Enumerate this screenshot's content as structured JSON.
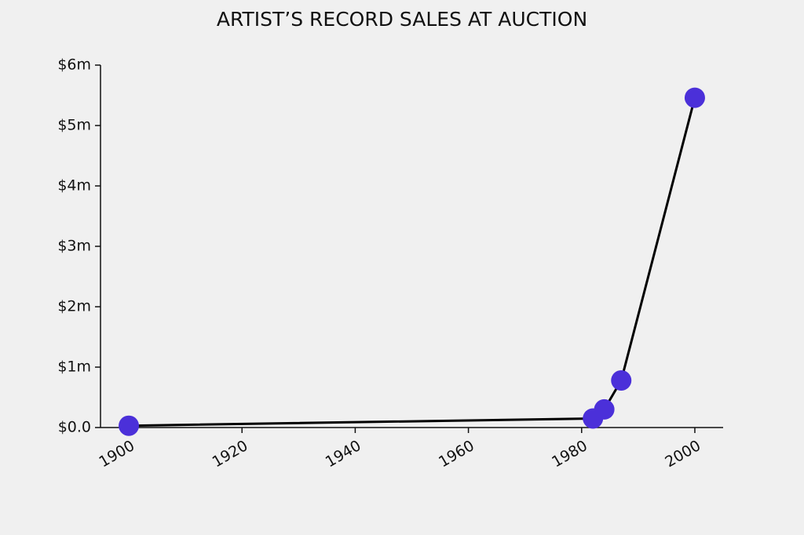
{
  "chart_data": {
    "type": "line",
    "title": "ARTIST’S RECORD SALES AT AUCTION",
    "x": [
      1900,
      1982,
      1984,
      1987,
      2000
    ],
    "values": [
      30000,
      150000,
      300000,
      780000,
      5460000
    ],
    "color": "#4b30d9",
    "line_color": "#000000",
    "xlim": [
      1895,
      2005
    ],
    "xticks": [
      1900,
      1920,
      1940,
      1960,
      1980,
      2000
    ],
    "ylim": [
      0,
      6000000
    ],
    "yticks": [
      {
        "value": 0,
        "label": "$0.0"
      },
      {
        "value": 1000000,
        "label": "$1m"
      },
      {
        "value": 2000000,
        "label": "$2m"
      },
      {
        "value": 3000000,
        "label": "$3m"
      },
      {
        "value": 4000000,
        "label": "$4m"
      },
      {
        "value": 5000000,
        "label": "$5m"
      },
      {
        "value": 6000000,
        "label": "$6m"
      }
    ]
  }
}
